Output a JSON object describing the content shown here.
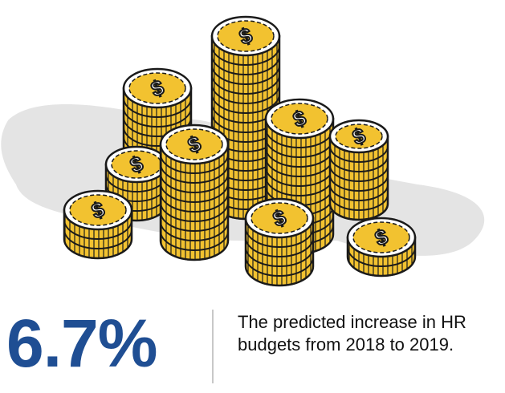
{
  "stat": {
    "value": "6.7%",
    "description": "The predicted increase in HR budgets from 2018 to 2019."
  },
  "colors": {
    "accent": "#1f4e93",
    "coin_fill": "#f2c230",
    "coin_outline": "#1a1a1a",
    "shadow": "#e0e0e0"
  },
  "illustration": {
    "icon": "coin-stacks-icon",
    "symbol": "$"
  }
}
